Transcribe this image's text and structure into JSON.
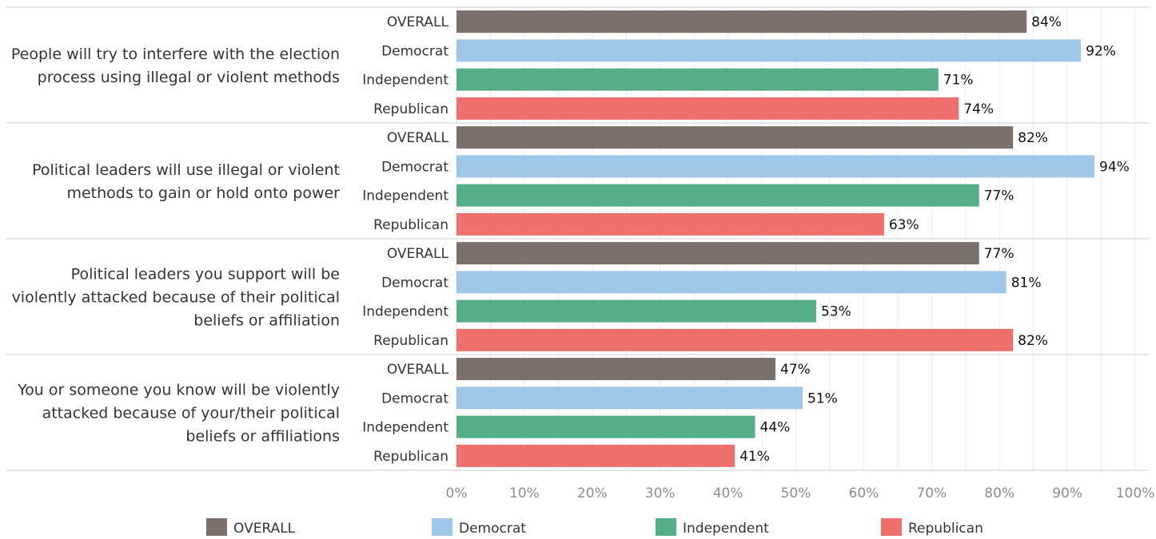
{
  "colors": {
    "OVERALL": "#7b706c",
    "Democrat": "#9fc8e8",
    "Independent": "#55ae88",
    "Republican": "#ee6f6b"
  },
  "chart_data": {
    "type": "bar",
    "orientation": "horizontal",
    "xlim": [
      0,
      100
    ],
    "x_ticks": [
      "0%",
      "10%",
      "20%",
      "30%",
      "40%",
      "50%",
      "60%",
      "70%",
      "80%",
      "90%",
      "100%"
    ],
    "grid": true,
    "legend_position": "bottom",
    "series_names": [
      "OVERALL",
      "Democrat",
      "Independent",
      "Republican"
    ],
    "groups": [
      {
        "label_lines": [
          "People will try to interfere with the election",
          "process using illegal or violent methods"
        ],
        "bars": [
          {
            "series": "OVERALL",
            "value": 84,
            "label": "84%"
          },
          {
            "series": "Democrat",
            "value": 92,
            "label": "92%"
          },
          {
            "series": "Independent",
            "value": 71,
            "label": "71%"
          },
          {
            "series": "Republican",
            "value": 74,
            "label": "74%"
          }
        ]
      },
      {
        "label_lines": [
          "Political leaders will use illegal or violent",
          "methods to gain or hold onto power"
        ],
        "bars": [
          {
            "series": "OVERALL",
            "value": 82,
            "label": "82%"
          },
          {
            "series": "Democrat",
            "value": 94,
            "label": "94%"
          },
          {
            "series": "Independent",
            "value": 77,
            "label": "77%"
          },
          {
            "series": "Republican",
            "value": 63,
            "label": "63%"
          }
        ]
      },
      {
        "label_lines": [
          "Political leaders you support will be",
          "violently attacked because of their political",
          "beliefs or affiliation"
        ],
        "bars": [
          {
            "series": "OVERALL",
            "value": 77,
            "label": "77%"
          },
          {
            "series": "Democrat",
            "value": 81,
            "label": "81%"
          },
          {
            "series": "Independent",
            "value": 53,
            "label": "53%"
          },
          {
            "series": "Republican",
            "value": 82,
            "label": "82%"
          }
        ]
      },
      {
        "label_lines": [
          "You or someone you know will be violently",
          "attacked because of your/their political",
          "beliefs or affiliations"
        ],
        "bars": [
          {
            "series": "OVERALL",
            "value": 47,
            "label": "47%"
          },
          {
            "series": "Democrat",
            "value": 51,
            "label": "51%"
          },
          {
            "series": "Independent",
            "value": 44,
            "label": "44%"
          },
          {
            "series": "Republican",
            "value": 41,
            "label": "41%"
          }
        ]
      }
    ]
  }
}
